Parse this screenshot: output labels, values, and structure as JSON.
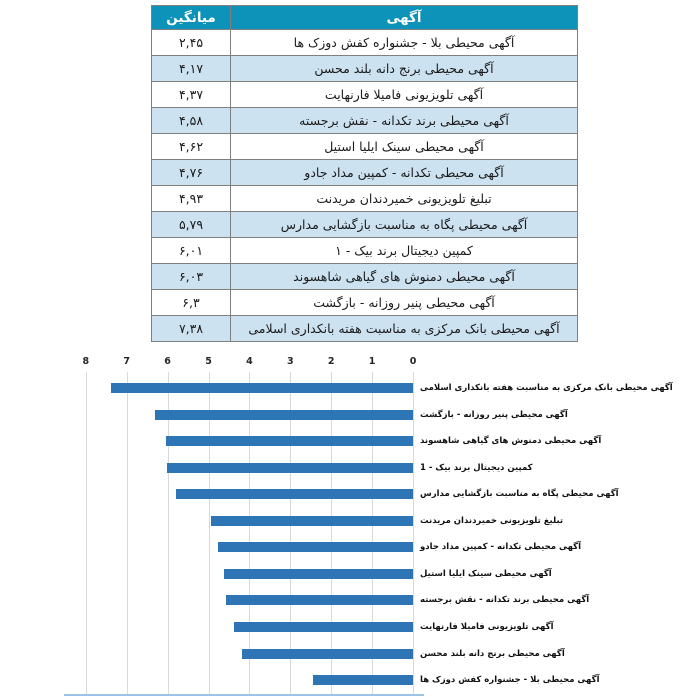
{
  "table": {
    "headers": {
      "mean": "میانگین",
      "ad": "آگهی"
    },
    "rows": [
      {
        "ad": "آگهی محیطی بلا - جشنواره کفش دوزک ها",
        "mean": "۲,۴۵"
      },
      {
        "ad": "آگهی محیطی برنج دانه بلند محسن",
        "mean": "۴,۱۷"
      },
      {
        "ad": "آگهی تلویزیونی فامیلا فارنهایت",
        "mean": "۴,۳۷"
      },
      {
        "ad": "آگهی محیطی برند تکدانه - نقش برجسته",
        "mean": "۴,۵۸"
      },
      {
        "ad": "آگهی محیطی سینک ایلیا استیل",
        "mean": "۴,۶۲"
      },
      {
        "ad": "آگهی محیطی تکدانه - کمپین مداد جادو",
        "mean": "۴,۷۶"
      },
      {
        "ad": "تبلیغ تلویزیونی خمیردندان مریدنت",
        "mean": "۴,۹۳"
      },
      {
        "ad": "آگهی محیطی پگاه به مناسبت بازگشایی مدارس",
        "mean": "۵,۷۹"
      },
      {
        "ad": "کمپین دیجیتال برند بیک - ۱",
        "mean": "۶,۰۱"
      },
      {
        "ad": "آگهی محیطی دمنوش های گیاهی شاهسوند",
        "mean": "۶,۰۳"
      },
      {
        "ad": "آگهی محیطی پنیر روزانه - بازگشت",
        "mean": "۶,۳"
      },
      {
        "ad": "آگهی محیطی بانک مرکزی به مناسبت هفته بانکداری اسلامی",
        "mean": "۷,۳۸"
      }
    ]
  },
  "chart_data": {
    "type": "bar",
    "orientation": "horizontal",
    "title": "",
    "xlabel": "",
    "ylabel": "",
    "categories": [
      "آگهی محیطی بانک مرکزی به مناسبت هفته بانکداری اسلامی",
      "آگهی محیطی پنیر روزانه - بازگشت",
      "آگهی محیطی دمنوش های گیاهی شاهسوند",
      "کمپین دیجیتال برند بیک - 1",
      "آگهی محیطی پگاه به مناسبت بازگشایی مدارس",
      "تبلیغ تلویزیونی خمیردندان مریدنت",
      "آگهی محیطی تکدانه - کمپین مداد جادو",
      "آگهی محیطی سینک ایلیا استیل",
      "آگهی محیطی برند تکدانه - نقش برجسته",
      "آگهی تلویزیونی فامیلا فارنهایت",
      "آگهی محیطی برنج دانه بلند محسن",
      "آگهی محیطی بلا - جشنواره کفش دوزک ها"
    ],
    "values": [
      7.38,
      6.3,
      6.03,
      6.01,
      5.79,
      4.93,
      4.76,
      4.62,
      4.58,
      4.37,
      4.17,
      2.45
    ],
    "xlim": [
      0,
      8
    ],
    "x_ticks": [
      8,
      7,
      6,
      5,
      4,
      3,
      2,
      1,
      0
    ],
    "x_axis_reversed": true,
    "grid": true,
    "legend": "none",
    "bar_color": "#2e75b6"
  },
  "colors": {
    "header_bg": "#0d93b9",
    "alt_row_bg": "#cde2f0",
    "table_border": "#7f7f7f",
    "bar": "#2e75b6",
    "gridline": "#d9d9d9",
    "axis_spine": "#9dc3e6"
  }
}
